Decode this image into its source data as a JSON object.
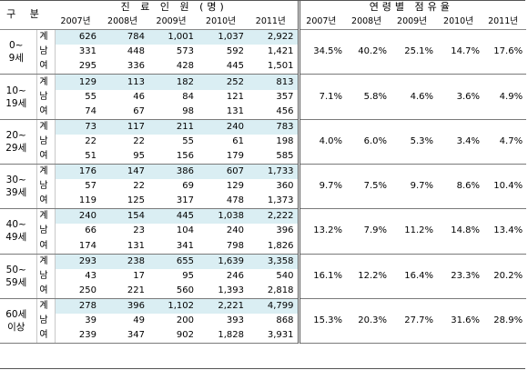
{
  "header": {
    "gubun": "구 분",
    "left_title": "진 료 인 원 (명)",
    "right_title": "연령별 점유율",
    "years": [
      "2007년",
      "2008년",
      "2009년",
      "2010년",
      "2011년"
    ]
  },
  "rows_labels": {
    "total": "계",
    "male": "남",
    "female": "여"
  },
  "groups": [
    {
      "age": "0~\n9세",
      "total": [
        "626",
        "784",
        "1,001",
        "1,037",
        "2,922"
      ],
      "male": [
        "331",
        "448",
        "573",
        "592",
        "1,421"
      ],
      "female": [
        "295",
        "336",
        "428",
        "445",
        "1,501"
      ],
      "share": [
        "34.5%",
        "40.2%",
        "25.1%",
        "14.7%",
        "17.6%"
      ]
    },
    {
      "age": "10~\n19세",
      "total": [
        "129",
        "113",
        "182",
        "252",
        "813"
      ],
      "male": [
        "55",
        "46",
        "84",
        "121",
        "357"
      ],
      "female": [
        "74",
        "67",
        "98",
        "131",
        "456"
      ],
      "share": [
        "7.1%",
        "5.8%",
        "4.6%",
        "3.6%",
        "4.9%"
      ]
    },
    {
      "age": "20~\n29세",
      "total": [
        "73",
        "117",
        "211",
        "240",
        "783"
      ],
      "male": [
        "22",
        "22",
        "55",
        "61",
        "198"
      ],
      "female": [
        "51",
        "95",
        "156",
        "179",
        "585"
      ],
      "share": [
        "4.0%",
        "6.0%",
        "5.3%",
        "3.4%",
        "4.7%"
      ]
    },
    {
      "age": "30~\n39세",
      "total": [
        "176",
        "147",
        "386",
        "607",
        "1,733"
      ],
      "male": [
        "57",
        "22",
        "69",
        "129",
        "360"
      ],
      "female": [
        "119",
        "125",
        "317",
        "478",
        "1,373"
      ],
      "share": [
        "9.7%",
        "7.5%",
        "9.7%",
        "8.6%",
        "10.4%"
      ]
    },
    {
      "age": "40~\n49세",
      "total": [
        "240",
        "154",
        "445",
        "1,038",
        "2,222"
      ],
      "male": [
        "66",
        "23",
        "104",
        "240",
        "396"
      ],
      "female": [
        "174",
        "131",
        "341",
        "798",
        "1,826"
      ],
      "share": [
        "13.2%",
        "7.9%",
        "11.2%",
        "14.8%",
        "13.4%"
      ]
    },
    {
      "age": "50~\n59세",
      "total": [
        "293",
        "238",
        "655",
        "1,639",
        "3,358"
      ],
      "male": [
        "43",
        "17",
        "95",
        "246",
        "540"
      ],
      "female": [
        "250",
        "221",
        "560",
        "1,393",
        "2,818"
      ],
      "share": [
        "16.1%",
        "12.2%",
        "16.4%",
        "23.3%",
        "20.2%"
      ]
    },
    {
      "age": "60세\n이상",
      "total": [
        "278",
        "396",
        "1,102",
        "2,221",
        "4,799"
      ],
      "male": [
        "39",
        "49",
        "200",
        "393",
        "868"
      ],
      "female": [
        "239",
        "347",
        "902",
        "1,828",
        "3,931"
      ],
      "share": [
        "15.3%",
        "20.3%",
        "27.7%",
        "31.6%",
        "28.9%"
      ]
    }
  ]
}
